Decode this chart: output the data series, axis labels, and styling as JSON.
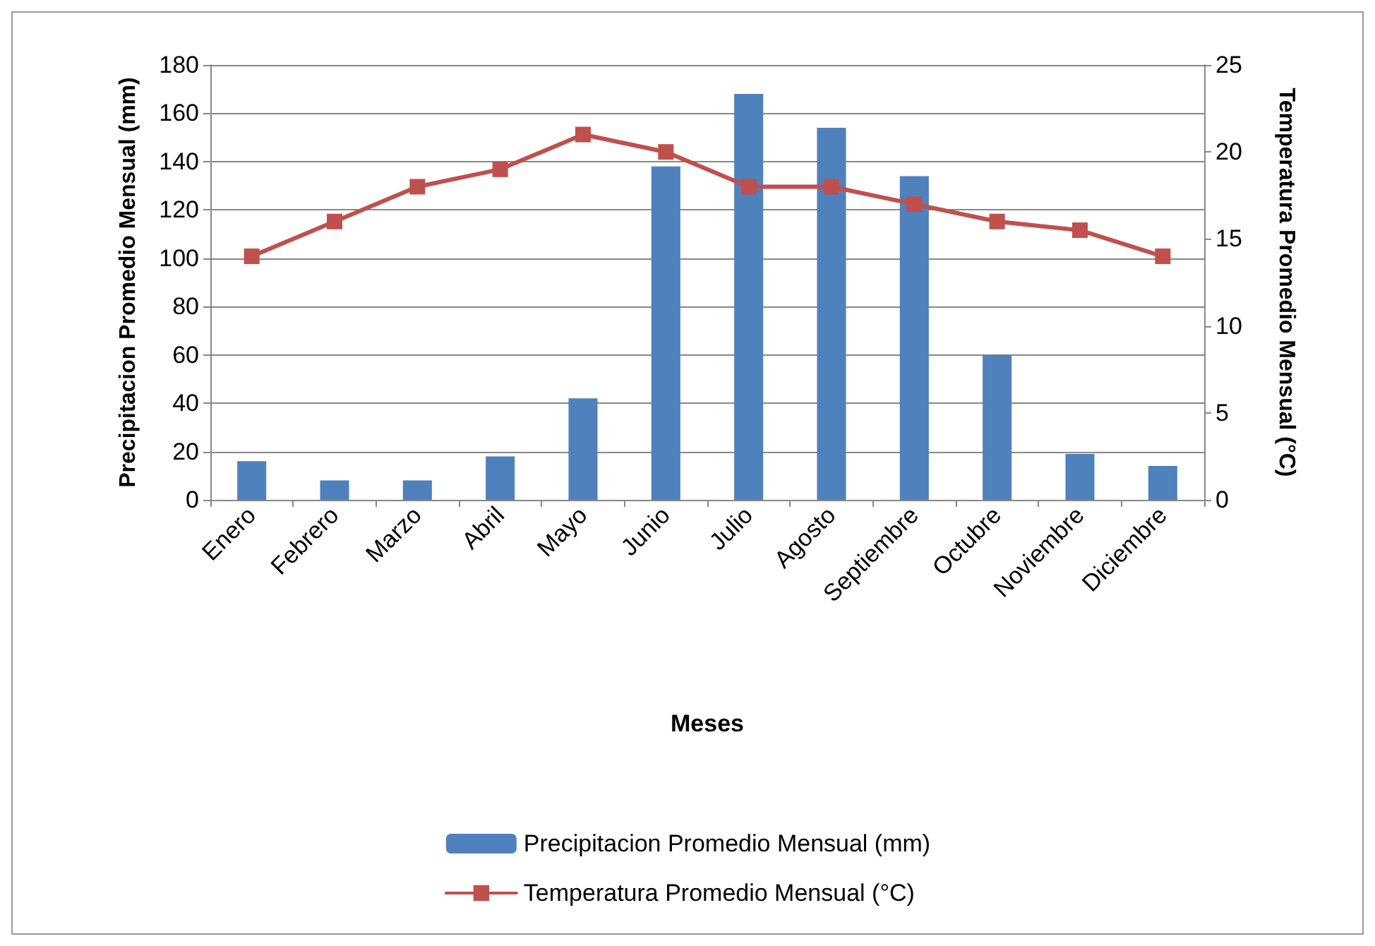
{
  "chart_data": {
    "type": "bar",
    "xlabel": "Meses",
    "ylabel": "Precipitacion Promedio Mensual (mm)",
    "y2label": "Temperatura Promedio Mensual (°C)",
    "categories": [
      "Enero",
      "Febrero",
      "Marzo",
      "Abril",
      "Mayo",
      "Junio",
      "Julio",
      "Agosto",
      "Septiembre",
      "Octubre",
      "Noviembre",
      "Diciembre"
    ],
    "series": [
      {
        "name": "Precipitacion Promedio Mensual (mm)",
        "color": "#4f81bd",
        "values": [
          16,
          8,
          8,
          18,
          42,
          138,
          168,
          154,
          134,
          60,
          19,
          14
        ]
      },
      {
        "name": "Temperatura Promedio Mensual (°C)",
        "type": "line",
        "axis": "y2",
        "color": "#c0504d",
        "marker": "square",
        "values": [
          14,
          16,
          18,
          19,
          21,
          20,
          18,
          18,
          17,
          16,
          15.5,
          14
        ]
      }
    ],
    "ylim": [
      0,
      180
    ],
    "yticks": [
      0,
      20,
      40,
      60,
      80,
      100,
      120,
      140,
      160,
      180
    ],
    "y2lim": [
      0,
      25
    ],
    "y2ticks": [
      0,
      5,
      10,
      15,
      20,
      25
    ],
    "grid": "y",
    "legend": "bottom"
  }
}
